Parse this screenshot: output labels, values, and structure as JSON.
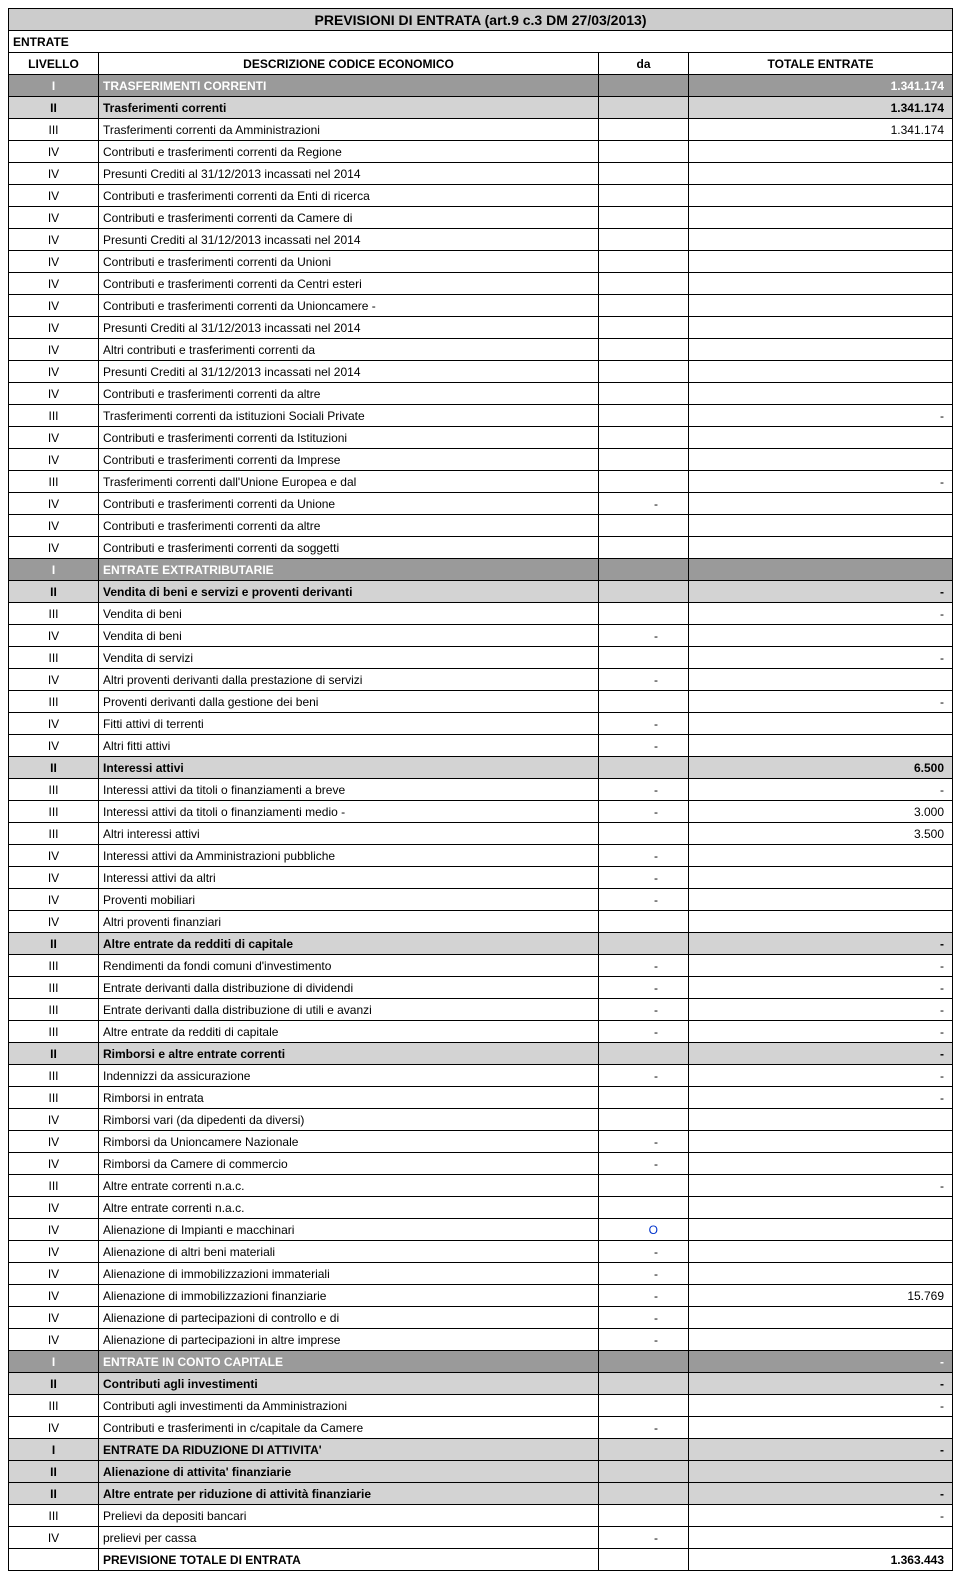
{
  "title": "PREVISIONI DI ENTRATA (art.9 c.3 DM 27/03/2013)",
  "entrate_label": "ENTRATE",
  "header": {
    "livello": "LIVELLO",
    "desc": "DESCRIZIONE CODICE ECONOMICO",
    "da": "da",
    "tot": "TOTALE ENTRATE"
  },
  "rows": [
    {
      "kind": "I",
      "level": "I",
      "desc": "TRASFERIMENTI CORRENTI",
      "da": "",
      "tot": "1.341.174"
    },
    {
      "kind": "II",
      "level": "II",
      "desc": "Trasferimenti correnti",
      "da": "",
      "tot": "1.341.174"
    },
    {
      "kind": "n",
      "level": "III",
      "desc": "Trasferimenti correnti da Amministrazioni",
      "da": "",
      "tot": "1.341.174"
    },
    {
      "kind": "n",
      "level": "IV",
      "desc": "Contributi e trasferimenti correnti da Regione",
      "da": "",
      "tot": ""
    },
    {
      "kind": "n",
      "level": "IV",
      "desc": "Presunti Crediti al 31/12/2013 incassati nel 2014",
      "da": "",
      "tot": ""
    },
    {
      "kind": "n",
      "level": "IV",
      "desc": "Contributi e trasferimenti correnti da Enti di ricerca",
      "da": "",
      "tot": ""
    },
    {
      "kind": "n",
      "level": "IV",
      "desc": "Contributi e trasferimenti correnti da Camere di",
      "da": "",
      "tot": ""
    },
    {
      "kind": "n",
      "level": "IV",
      "desc": "Presunti Crediti al 31/12/2013 incassati nel 2014",
      "da": "",
      "tot": ""
    },
    {
      "kind": "n",
      "level": "IV",
      "desc": "Contributi e trasferimenti correnti da Unioni",
      "da": "",
      "tot": ""
    },
    {
      "kind": "n",
      "level": "IV",
      "desc": "Contributi e trasferimenti correnti da Centri esteri",
      "da": "",
      "tot": ""
    },
    {
      "kind": "n",
      "level": "IV",
      "desc": "Contributi e trasferimenti correnti da Unioncamere -",
      "da": "",
      "tot": ""
    },
    {
      "kind": "n",
      "level": "IV",
      "desc": "Presunti Crediti al 31/12/2013 incassati nel 2014",
      "da": "",
      "tot": ""
    },
    {
      "kind": "n",
      "level": "IV",
      "desc": "Altri contributi e trasferimenti correnti da",
      "da": "",
      "tot": ""
    },
    {
      "kind": "n",
      "level": "IV",
      "desc": "Presunti Crediti al 31/12/2013 incassati nel 2014",
      "da": "",
      "tot": ""
    },
    {
      "kind": "n",
      "level": "IV",
      "desc": "Contributi e trasferimenti correnti da altre",
      "da": "",
      "tot": ""
    },
    {
      "kind": "n",
      "level": "III",
      "desc": "Trasferimenti correnti da istituzioni Sociali Private",
      "da": "",
      "tot": "-"
    },
    {
      "kind": "n",
      "level": "IV",
      "desc": "Contributi e trasferimenti correnti da Istituzioni",
      "da": "",
      "tot": ""
    },
    {
      "kind": "n",
      "level": "IV",
      "desc": "Contributi e trasferimenti correnti da  Imprese",
      "da": "",
      "tot": ""
    },
    {
      "kind": "n",
      "level": "III",
      "desc": "Trasferimenti correnti dall'Unione Europea e dal",
      "da": "",
      "tot": "-"
    },
    {
      "kind": "n",
      "level": "IV",
      "desc": "Contributi e trasferimenti correnti da Unione",
      "da": "-",
      "tot": ""
    },
    {
      "kind": "n",
      "level": "IV",
      "desc": "Contributi e trasferimenti correnti da altre",
      "da": "",
      "tot": ""
    },
    {
      "kind": "n",
      "level": "IV",
      "desc": "Contributi e trasferimenti correnti da soggetti",
      "da": "",
      "tot": ""
    },
    {
      "kind": "I",
      "level": "I",
      "desc": "ENTRATE EXTRATRIBUTARIE",
      "da": "",
      "tot": ""
    },
    {
      "kind": "II",
      "level": "II",
      "desc": "Vendita di beni e servizi e proventi derivanti",
      "da": "",
      "tot": "-"
    },
    {
      "kind": "n",
      "level": "III",
      "desc": "Vendita di beni",
      "da": "",
      "tot": "-"
    },
    {
      "kind": "n",
      "level": "IV",
      "desc": "Vendita di beni",
      "da": "-",
      "tot": ""
    },
    {
      "kind": "n",
      "level": "III",
      "desc": "Vendita di servizi",
      "da": "",
      "tot": "-"
    },
    {
      "kind": "n",
      "level": "IV",
      "desc": "Altri proventi derivanti dalla prestazione di servizi",
      "da": "-",
      "tot": ""
    },
    {
      "kind": "n",
      "level": "III",
      "desc": "Proventi derivanti dalla gestione dei beni",
      "da": "",
      "tot": "-"
    },
    {
      "kind": "n",
      "level": "IV",
      "desc": "Fitti attivi di terrenti",
      "da": "-",
      "tot": ""
    },
    {
      "kind": "n",
      "level": "IV",
      "desc": "Altri fitti attivi",
      "da": "-",
      "tot": ""
    },
    {
      "kind": "II",
      "level": "II",
      "desc": "Interessi attivi",
      "da": "",
      "tot": "6.500"
    },
    {
      "kind": "n",
      "level": "III",
      "desc": "Interessi attivi da titoli o finanziamenti a breve",
      "da": "-",
      "tot": "-"
    },
    {
      "kind": "n",
      "level": "III",
      "desc": "Interessi attivi da titoli o finanziamenti medio -",
      "da": "-",
      "tot": "3.000"
    },
    {
      "kind": "n",
      "level": "III",
      "desc": "Altri interessi attivi",
      "da": "",
      "tot": "3.500"
    },
    {
      "kind": "n",
      "level": "IV",
      "desc": "Interessi attivi da Amministrazioni pubbliche",
      "da": "-",
      "tot": ""
    },
    {
      "kind": "n",
      "level": "IV",
      "desc": "Interessi attivi da altri",
      "da": "-",
      "tot": ""
    },
    {
      "kind": "n",
      "level": "IV",
      "desc": "Proventi mobiliari",
      "da": "-",
      "tot": ""
    },
    {
      "kind": "n",
      "level": "IV",
      "desc": "Altri proventi finanziari",
      "da": "",
      "tot": ""
    },
    {
      "kind": "II",
      "level": "II",
      "desc": "Altre entrate da redditi di capitale",
      "da": "",
      "tot": "-"
    },
    {
      "kind": "n",
      "level": "III",
      "desc": "Rendimenti da fondi comuni d'investimento",
      "da": "-",
      "tot": "-"
    },
    {
      "kind": "n",
      "level": "III",
      "desc": "Entrate derivanti dalla distribuzione di dividendi",
      "da": "-",
      "tot": "-"
    },
    {
      "kind": "n",
      "level": "III",
      "desc": "Entrate derivanti dalla distribuzione di utili e avanzi",
      "da": "-",
      "tot": "-"
    },
    {
      "kind": "n",
      "level": "III",
      "desc": "Altre entrate da redditi di capitale",
      "da": "-",
      "tot": "-"
    },
    {
      "kind": "II",
      "level": "II",
      "desc": "Rimborsi e altre entrate correnti",
      "da": "",
      "tot": "-"
    },
    {
      "kind": "n",
      "level": "III",
      "desc": "Indennizzi da assicurazione",
      "da": "-",
      "tot": "-"
    },
    {
      "kind": "n",
      "level": "III",
      "desc": "Rimborsi in entrata",
      "da": "",
      "tot": "-"
    },
    {
      "kind": "n",
      "level": "IV",
      "desc": "Rimborsi vari (da dipedenti da diversi)",
      "da": "",
      "tot": ""
    },
    {
      "kind": "n",
      "level": "IV",
      "desc": "Rimborsi da Unioncamere Nazionale",
      "da": "-",
      "tot": ""
    },
    {
      "kind": "n",
      "level": "IV",
      "desc": "Rimborsi da Camere di commercio",
      "da": "-",
      "tot": ""
    },
    {
      "kind": "n",
      "level": "III",
      "desc": "Altre entrate correnti n.a.c.",
      "da": "",
      "tot": "-"
    },
    {
      "kind": "n",
      "level": "IV",
      "desc": "Altre entrate correnti n.a.c.",
      "da": "",
      "tot": ""
    },
    {
      "kind": "n",
      "level": "IV",
      "desc": "Alienazione di Impianti e macchinari",
      "da": "O",
      "da_blue": true,
      "tot": ""
    },
    {
      "kind": "n",
      "level": "IV",
      "desc": "Alienazione di altri beni materiali",
      "da": "-",
      "tot": ""
    },
    {
      "kind": "n",
      "level": "IV",
      "desc": "Alienazione di immobilizzazioni immateriali",
      "da": "-",
      "tot": ""
    },
    {
      "kind": "n",
      "level": "IV",
      "desc": "Alienazione di immobilizzazioni finanziarie",
      "da": "-",
      "tot": "15.769"
    },
    {
      "kind": "n",
      "level": "IV",
      "desc": "Alienazione di partecipazioni di controllo e di",
      "da": "-",
      "tot": ""
    },
    {
      "kind": "n",
      "level": "IV",
      "desc": "Alienazione di partecipazioni  in altre imprese",
      "da": "-",
      "tot": ""
    },
    {
      "kind": "I",
      "level": "I",
      "desc": "ENTRATE IN CONTO CAPITALE",
      "da": "",
      "tot": "-"
    },
    {
      "kind": "II",
      "level": "II",
      "desc": "Contributi agli investimenti",
      "da": "",
      "tot": "-"
    },
    {
      "kind": "n",
      "level": "III",
      "desc": "Contributi agli investimenti da Amministrazioni",
      "da": "",
      "tot": "-"
    },
    {
      "kind": "n",
      "level": "IV",
      "desc": "Contributi e trasferimenti in c/capitale  da  Camere",
      "da": "-",
      "tot": ""
    },
    {
      "kind": "I2",
      "level": "I",
      "desc": "ENTRATE DA RIDUZIONE DI ATTIVITA'",
      "da": "",
      "tot": "-"
    },
    {
      "kind": "II",
      "level": "II",
      "desc": "Alienazione di attivita' finanziarie",
      "da": "",
      "tot": ""
    },
    {
      "kind": "II",
      "level": "II",
      "desc": "Altre entrate per riduzione di attività finanziarie",
      "da": "",
      "tot": "-"
    },
    {
      "kind": "n",
      "level": "III",
      "desc": "Prelievi da depositi bancari",
      "da": "",
      "tot": "-"
    },
    {
      "kind": "n",
      "level": "IV",
      "desc": "prelievi per cassa",
      "da": "-",
      "tot": ""
    }
  ],
  "total_row": {
    "level": "",
    "desc": "PREVISIONE TOTALE DI ENTRATA",
    "da": "",
    "tot": "1.363.443"
  }
}
